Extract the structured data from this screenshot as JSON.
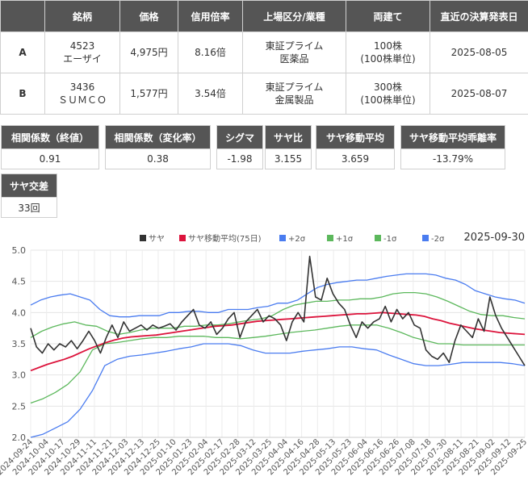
{
  "table": {
    "headers": [
      "",
      "銘柄",
      "価格",
      "信用倍率",
      "上場区分/業種",
      "両建て",
      "直近の決算発表日"
    ],
    "rows": [
      {
        "label": "A",
        "code": "4523",
        "name": "エーザイ",
        "price": "4,975円",
        "margin": "8.16倍",
        "market": "東証プライム",
        "sector": "医薬品",
        "lot": "100株",
        "unit": "(100株単位)",
        "date": "2025-08-05"
      },
      {
        "label": "B",
        "code": "3436",
        "name": "ＳＵＭＣＯ",
        "price": "1,577円",
        "margin": "3.54倍",
        "market": "東証プライム",
        "sector": "金属製品",
        "lot": "300株",
        "unit": "(100株単位)",
        "date": "2025-08-07"
      }
    ]
  },
  "metrics": [
    {
      "label": "相関係数（終値）",
      "value": "0.91"
    },
    {
      "label": "相関係数（変化率）",
      "value": "0.38"
    },
    {
      "label": "シグマ",
      "value": "-1.98"
    },
    {
      "label": "サヤ比",
      "value": "3.155"
    },
    {
      "label": "サヤ移動平均",
      "value": "3.659"
    },
    {
      "label": "サヤ移動平均乖離率",
      "value": "-13.79%"
    }
  ],
  "cross": {
    "label": "サヤ交差",
    "value": "33回"
  },
  "chart_data": {
    "type": "line",
    "date_label": "2025-09-30",
    "ylim": [
      2.0,
      5.0
    ],
    "y_ticks": [
      "2.0",
      "2.5",
      "3.0",
      "3.5",
      "4.0",
      "4.5",
      "5.0"
    ],
    "x_ticks": [
      "2024-09-24",
      "2024-10-04",
      "2024-10-17",
      "2024-10-29",
      "2024-11-11",
      "2024-11-21",
      "2024-12-03",
      "2024-12-13",
      "2024-12-25",
      "2025-01-10",
      "2025-01-23",
      "2025-02-04",
      "2025-02-17",
      "2025-02-28",
      "2025-03-12",
      "2025-03-25",
      "2025-04-04",
      "2025-04-16",
      "2025-04-28",
      "2025-05-13",
      "2025-05-23",
      "2025-06-04",
      "2025-06-16",
      "2025-06-26",
      "2025-07-08",
      "2025-07-18",
      "2025-07-30",
      "2025-08-11",
      "2025-08-21",
      "2025-09-02",
      "2025-09-12",
      "2025-09-25"
    ],
    "grid": true,
    "legend_position": "top",
    "series": [
      {
        "name": "サヤ",
        "color": "#333333",
        "values": [
          3.75,
          3.45,
          3.35,
          3.5,
          3.4,
          3.5,
          3.45,
          3.55,
          3.42,
          3.55,
          3.7,
          3.55,
          3.35,
          3.6,
          3.8,
          3.6,
          3.85,
          3.7,
          3.75,
          3.8,
          3.72,
          3.8,
          3.75,
          3.78,
          3.82,
          3.72,
          3.85,
          3.95,
          4.05,
          3.8,
          3.75,
          3.85,
          3.65,
          3.75,
          3.9,
          4.0,
          3.6,
          3.85,
          3.95,
          4.05,
          3.85,
          3.95,
          3.9,
          3.8,
          3.55,
          3.85,
          4.0,
          3.85,
          4.9,
          4.25,
          4.2,
          4.55,
          4.3,
          4.15,
          4.05,
          3.8,
          3.6,
          3.85,
          3.75,
          3.85,
          3.9,
          4.1,
          3.85,
          4.05,
          3.9,
          4.0,
          3.8,
          3.75,
          3.4,
          3.3,
          3.25,
          3.35,
          3.2,
          3.55,
          3.8,
          3.7,
          3.6,
          3.9,
          3.7,
          4.25,
          3.95,
          3.75,
          3.6,
          3.45,
          3.3,
          3.15
        ]
      },
      {
        "name": "サヤ移動平均(75日)",
        "color": "#dc143c",
        "values": [
          3.07,
          3.12,
          3.17,
          3.21,
          3.25,
          3.3,
          3.36,
          3.42,
          3.47,
          3.52,
          3.56,
          3.59,
          3.61,
          3.62,
          3.63,
          3.64,
          3.66,
          3.68,
          3.7,
          3.72,
          3.74,
          3.76,
          3.78,
          3.79,
          3.8,
          3.82,
          3.84,
          3.86,
          3.87,
          3.88,
          3.89,
          3.9,
          3.91,
          3.92,
          3.93,
          3.94,
          3.95,
          3.96,
          3.97,
          3.98,
          3.98,
          3.99,
          4.0,
          3.99,
          3.98,
          3.97,
          3.96,
          3.94,
          3.9,
          3.87,
          3.83,
          3.8,
          3.77,
          3.74,
          3.72,
          3.7,
          3.68,
          3.67,
          3.66,
          3.65
        ]
      },
      {
        "name": "+2σ",
        "color": "#4a7cf0",
        "values": [
          4.12,
          4.2,
          4.25,
          4.28,
          4.3,
          4.25,
          4.2,
          4.05,
          3.95,
          3.93,
          3.93,
          3.95,
          3.95,
          3.95,
          4.0,
          4.0,
          4.02,
          4.02,
          4.0,
          4.0,
          4.05,
          4.05,
          4.05,
          4.08,
          4.1,
          4.15,
          4.15,
          4.2,
          4.3,
          4.4,
          4.45,
          4.48,
          4.5,
          4.52,
          4.52,
          4.55,
          4.58,
          4.6,
          4.62,
          4.62,
          4.62,
          4.6,
          4.55,
          4.52,
          4.45,
          4.35,
          4.3,
          4.25,
          4.22,
          4.2,
          4.15
        ]
      },
      {
        "name": "+1σ",
        "color": "#5cb85c",
        "values": [
          3.6,
          3.7,
          3.77,
          3.82,
          3.85,
          3.8,
          3.78,
          3.7,
          3.65,
          3.68,
          3.72,
          3.75,
          3.75,
          3.75,
          3.78,
          3.78,
          3.8,
          3.8,
          3.82,
          3.85,
          3.88,
          3.9,
          3.95,
          4.05,
          4.12,
          4.15,
          4.18,
          4.18,
          4.2,
          4.2,
          4.22,
          4.22,
          4.25,
          4.3,
          4.32,
          4.32,
          4.3,
          4.25,
          4.18,
          4.1,
          4.02,
          3.97,
          3.95,
          3.95,
          3.92,
          3.9
        ]
      },
      {
        "name": "-1σ",
        "color": "#5cb85c",
        "values": [
          2.55,
          2.62,
          2.72,
          2.85,
          3.05,
          3.4,
          3.5,
          3.52,
          3.55,
          3.58,
          3.6,
          3.6,
          3.62,
          3.62,
          3.62,
          3.6,
          3.6,
          3.58,
          3.6,
          3.62,
          3.65,
          3.68,
          3.7,
          3.72,
          3.75,
          3.78,
          3.8,
          3.8,
          3.8,
          3.75,
          3.68,
          3.6,
          3.55,
          3.5,
          3.5,
          3.48,
          3.48,
          3.48,
          3.48,
          3.48,
          3.48
        ]
      },
      {
        "name": "-2σ",
        "color": "#4a7cf0",
        "values": [
          2.0,
          2.05,
          2.15,
          2.25,
          2.45,
          2.75,
          3.15,
          3.25,
          3.3,
          3.32,
          3.35,
          3.38,
          3.42,
          3.45,
          3.5,
          3.5,
          3.5,
          3.47,
          3.4,
          3.35,
          3.35,
          3.35,
          3.38,
          3.4,
          3.42,
          3.45,
          3.45,
          3.42,
          3.4,
          3.32,
          3.25,
          3.18,
          3.15,
          3.15,
          3.17,
          3.2,
          3.2,
          3.2,
          3.2,
          3.18,
          3.15
        ]
      }
    ]
  }
}
